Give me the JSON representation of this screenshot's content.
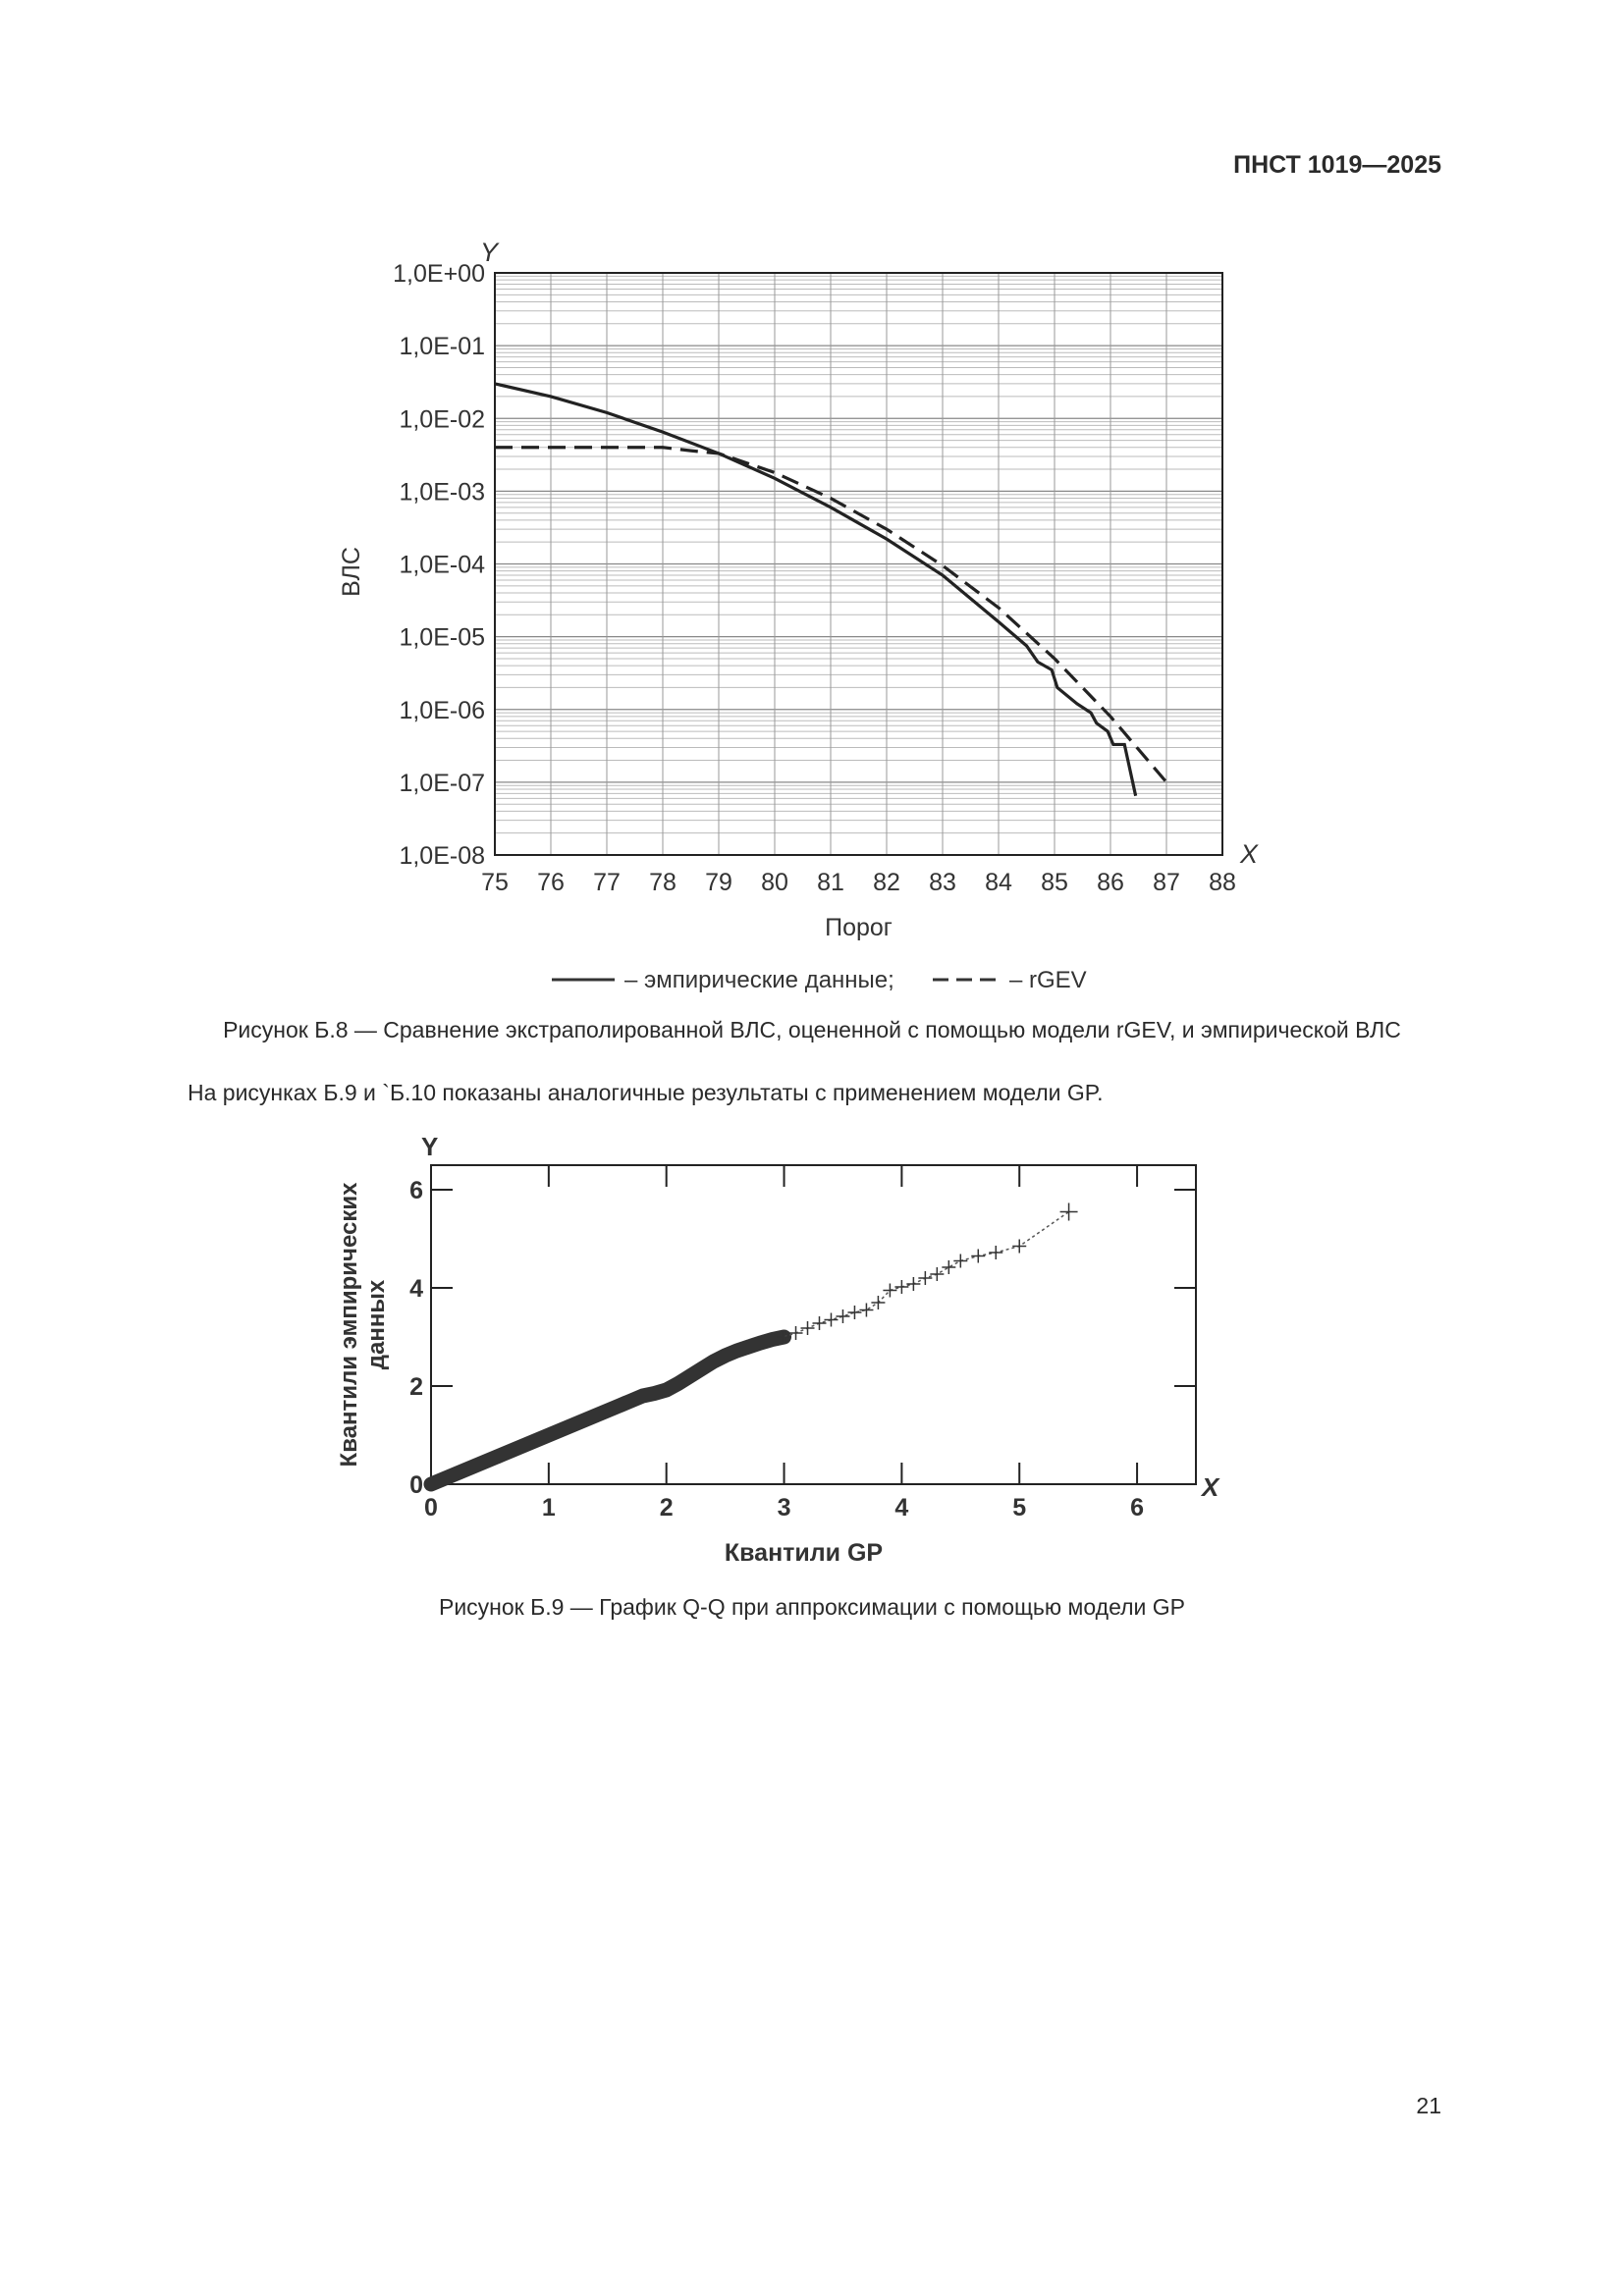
{
  "header": {
    "doc_id": "ПНСТ 1019—2025"
  },
  "figure_b8": {
    "caption": "Рисунок Б.8 — Сравнение экстраполированной ВЛС, оцененной с помощью модели rGEV, и эмпирической ВЛС"
  },
  "paragraph": "На рисунках Б.9 и `Б.10 показаны аналогичные результаты с применением модели GP.",
  "figure_b9": {
    "caption": "Рисунок Б.9 — График Q-Q при аппроксимации с помощью модели GP"
  },
  "page_number": "21",
  "chart_data": [
    {
      "type": "line",
      "xlabel": "Порог",
      "ylabel": "ВЛС",
      "x_axis_letter": "X",
      "y_axis_letter": "Y",
      "xlim": [
        75,
        88
      ],
      "ylim": [
        1e-08,
        1
      ],
      "y_scale": "log",
      "grid": true,
      "x_ticks": [
        "75",
        "76",
        "77",
        "78",
        "79",
        "80",
        "81",
        "82",
        "83",
        "84",
        "85",
        "86",
        "87",
        "88"
      ],
      "y_ticks": [
        "1,0E+00",
        "1,0E-01",
        "1,0E-02",
        "1,0E-03",
        "1,0E-04",
        "1,0E-05",
        "1,0E-06",
        "1,0E-07",
        "1,0E-08"
      ],
      "legend_placement": "bottom",
      "series": [
        {
          "name": "– эмпирические данные;",
          "style": "solid",
          "x": [
            75,
            76,
            77,
            78,
            79,
            80,
            81,
            82,
            83,
            84,
            84.5,
            84.7,
            84.95,
            85.05,
            85.4,
            85.65,
            85.75,
            85.95,
            86.05,
            86.25,
            86.45
          ],
          "y": [
            0.03,
            0.02,
            0.012,
            0.0065,
            0.0033,
            0.0015,
            0.0006,
            0.00022,
            7e-05,
            1.6e-05,
            7.5e-06,
            4.5e-06,
            3.5e-06,
            2e-06,
            1.2e-06,
            9e-07,
            6.5e-07,
            5e-07,
            3.3e-07,
            3.3e-07,
            6.5e-08
          ]
        },
        {
          "name": "– rGEV",
          "style": "dashed",
          "x": [
            75,
            78,
            78.5,
            79,
            80,
            81,
            82,
            83,
            84,
            85,
            86,
            87
          ],
          "y": [
            0.004,
            0.004,
            0.0036,
            0.0033,
            0.0018,
            0.0008,
            0.0003,
            9.5e-05,
            2.5e-05,
            5e-06,
            8e-07,
            1e-07
          ]
        }
      ]
    },
    {
      "type": "scatter",
      "xlabel": "Квантили GP",
      "ylabel": "Квантили эмпирических данных",
      "x_axis_letter": "X",
      "y_axis_letter": "Y",
      "xlim": [
        0,
        6.5
      ],
      "ylim": [
        0,
        6.5
      ],
      "grid": false,
      "x_ticks": [
        "0",
        "1",
        "2",
        "3",
        "4",
        "5",
        "6"
      ],
      "y_ticks": [
        "0",
        "2",
        "4",
        "6"
      ],
      "marker": "plus",
      "points": [
        [
          0,
          0
        ],
        [
          0.1,
          0.1
        ],
        [
          0.2,
          0.2
        ],
        [
          0.3,
          0.3
        ],
        [
          0.4,
          0.4
        ],
        [
          0.5,
          0.5
        ],
        [
          0.6,
          0.6
        ],
        [
          0.7,
          0.7
        ],
        [
          0.8,
          0.8
        ],
        [
          0.9,
          0.9
        ],
        [
          1.0,
          1.0
        ],
        [
          1.1,
          1.1
        ],
        [
          1.2,
          1.2
        ],
        [
          1.3,
          1.3
        ],
        [
          1.4,
          1.4
        ],
        [
          1.5,
          1.5
        ],
        [
          1.6,
          1.6
        ],
        [
          1.7,
          1.7
        ],
        [
          1.8,
          1.8
        ],
        [
          1.9,
          1.85
        ],
        [
          2.0,
          1.92
        ],
        [
          2.1,
          2.05
        ],
        [
          2.2,
          2.2
        ],
        [
          2.3,
          2.35
        ],
        [
          2.4,
          2.5
        ],
        [
          2.5,
          2.62
        ],
        [
          2.6,
          2.72
        ],
        [
          2.7,
          2.8
        ],
        [
          2.8,
          2.88
        ],
        [
          2.9,
          2.95
        ],
        [
          3.0,
          3.0
        ],
        [
          3.1,
          3.08
        ],
        [
          3.2,
          3.18
        ],
        [
          3.3,
          3.28
        ],
        [
          3.4,
          3.35
        ],
        [
          3.5,
          3.42
        ],
        [
          3.6,
          3.5
        ],
        [
          3.7,
          3.55
        ],
        [
          3.8,
          3.7
        ],
        [
          3.9,
          3.95
        ],
        [
          4.0,
          4.02
        ],
        [
          4.1,
          4.08
        ],
        [
          4.2,
          4.2
        ],
        [
          4.3,
          4.28
        ],
        [
          4.4,
          4.42
        ],
        [
          4.5,
          4.55
        ],
        [
          4.65,
          4.65
        ],
        [
          4.8,
          4.72
        ],
        [
          5.0,
          4.85
        ],
        [
          5.42,
          5.55
        ]
      ]
    }
  ]
}
